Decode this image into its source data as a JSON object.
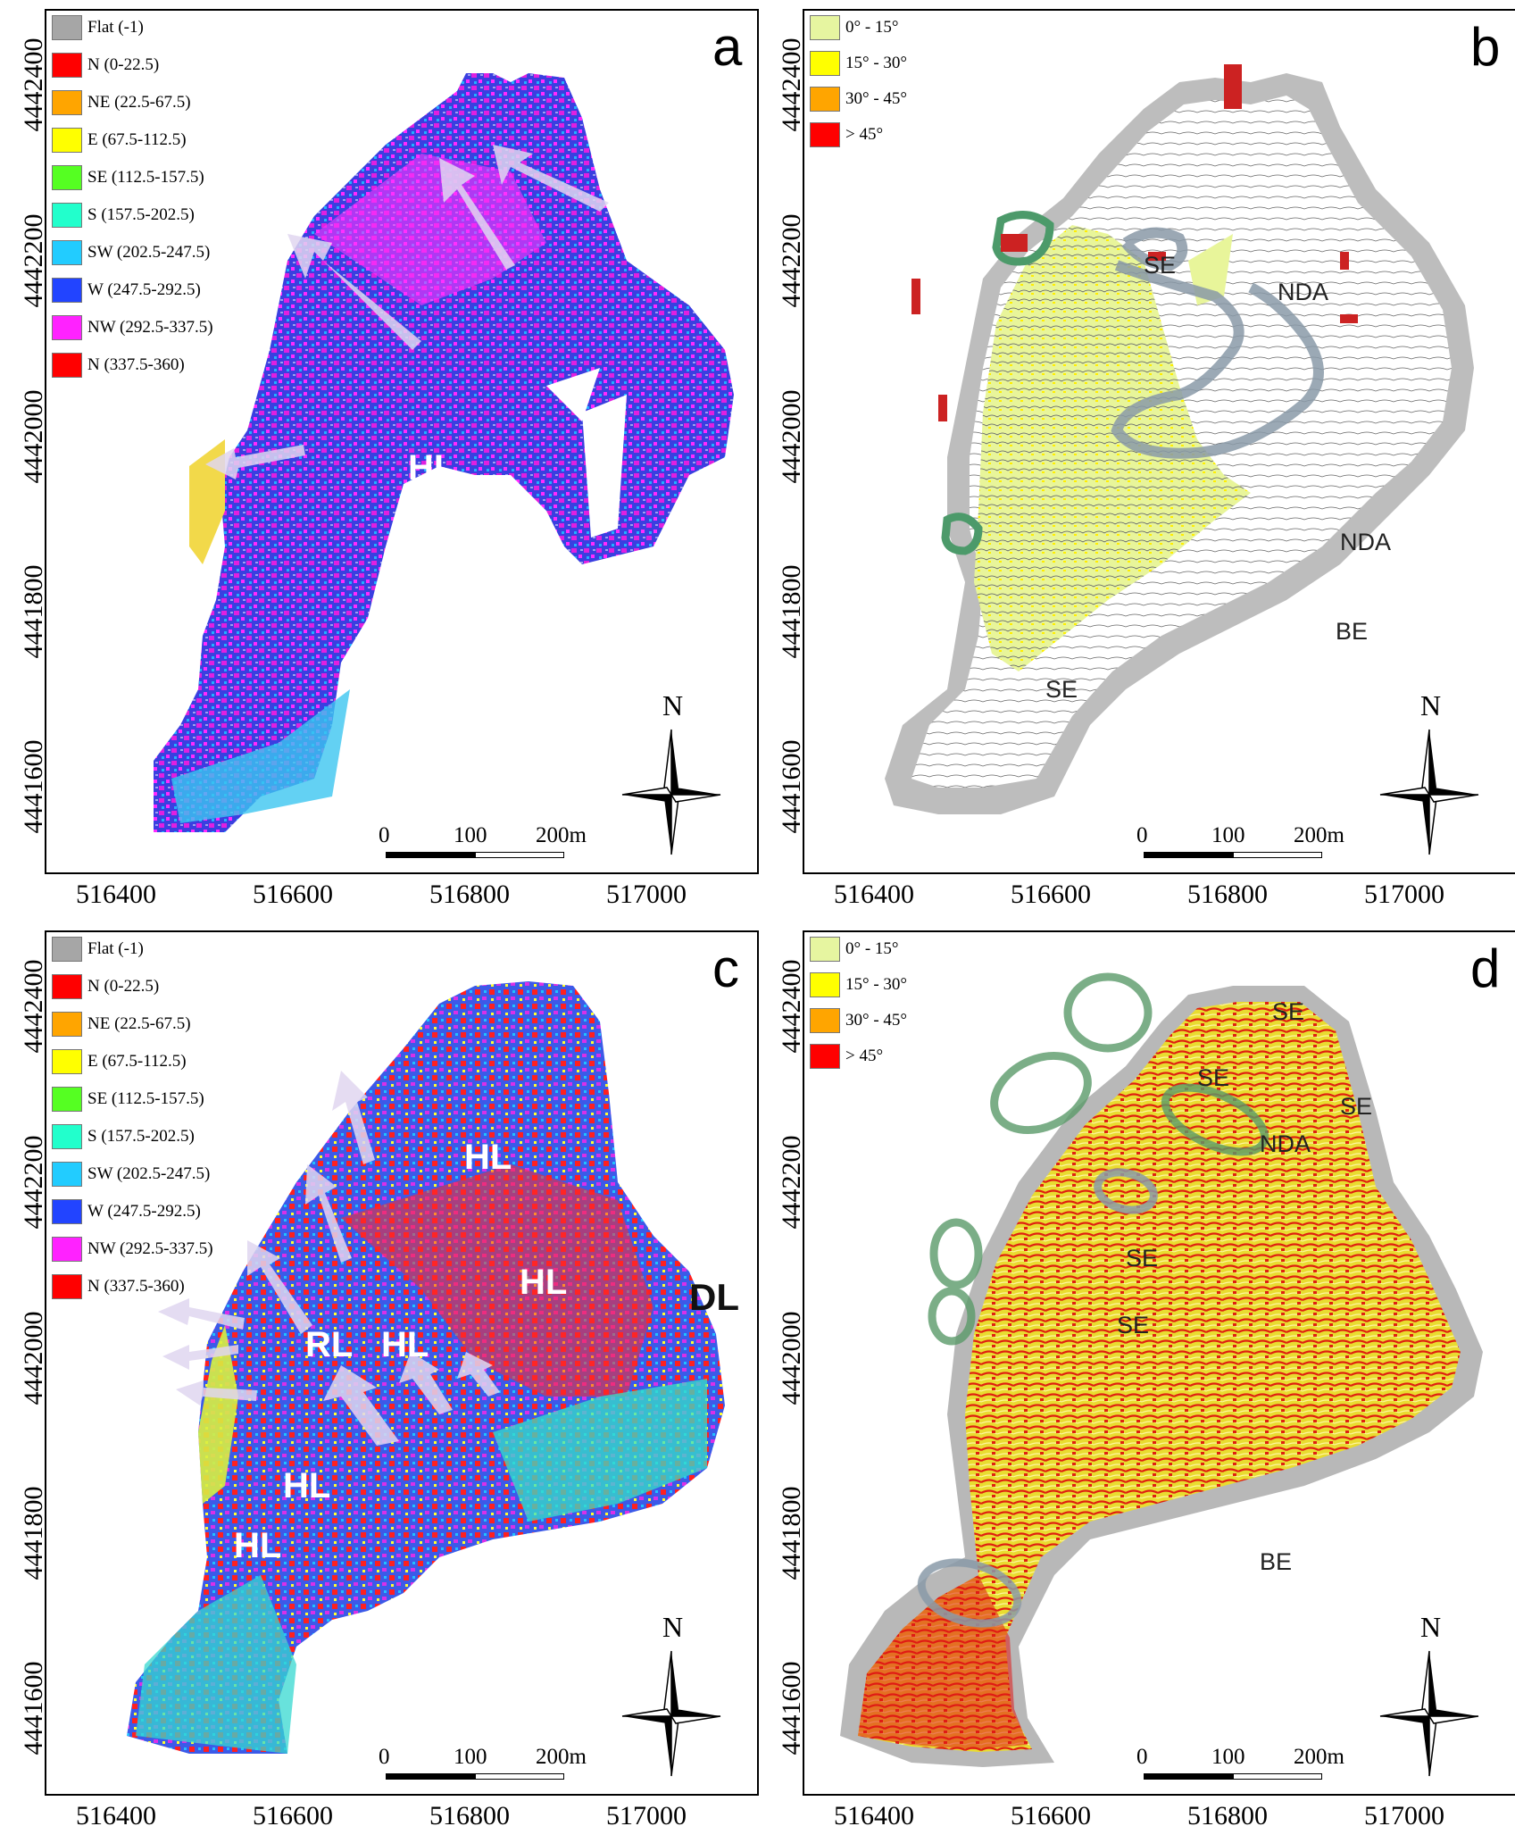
{
  "panels": [
    {
      "letter": "a",
      "legend": [
        {
          "label": "Flat (-1)",
          "color": "#a6a6a6"
        },
        {
          "label": "N (0-22.5)",
          "color": "#ff0000"
        },
        {
          "label": "NE (22.5-67.5)",
          "color": "#ffa500"
        },
        {
          "label": "E (67.5-112.5)",
          "color": "#ffff00"
        },
        {
          "label": "SE (112.5-157.5)",
          "color": "#55ff22"
        },
        {
          "label": "S (157.5-202.5)",
          "color": "#22ffcc"
        },
        {
          "label": "SW (202.5-247.5)",
          "color": "#22ccff"
        },
        {
          "label": "W (247.5-292.5)",
          "color": "#2244ff"
        },
        {
          "label": "NW (292.5-337.5)",
          "color": "#ff22ff"
        },
        {
          "label": "N (337.5-360)",
          "color": "#ff0000"
        }
      ],
      "yticks": [
        "4442400",
        "4442200",
        "4442000",
        "4441800",
        "4441600"
      ],
      "xticks": [
        "516400",
        "516600",
        "516800",
        "517000"
      ],
      "labels": [
        {
          "text": "HL",
          "style": "white"
        }
      ],
      "north": "N",
      "scale": [
        "0",
        "100",
        "200m"
      ]
    },
    {
      "letter": "b",
      "legend": [
        {
          "label": "0° - 15°",
          "color": "#e6f5a0"
        },
        {
          "label": "15° - 30°",
          "color": "#ffff00"
        },
        {
          "label": "30° - 45°",
          "color": "#ffa500"
        },
        {
          "label": "> 45°",
          "color": "#ff0000"
        }
      ],
      "yticks": [
        "4442400",
        "4442200",
        "4442000",
        "4441800",
        "4441600"
      ],
      "xticks": [
        "516400",
        "516600",
        "516800",
        "517000"
      ],
      "labels": [
        {
          "text": "SE",
          "style": "dark"
        },
        {
          "text": "NDA",
          "style": "dark"
        },
        {
          "text": "NDA",
          "style": "dark"
        },
        {
          "text": "BE",
          "style": "dark"
        },
        {
          "text": "SE",
          "style": "dark"
        }
      ],
      "north": "N",
      "scale": [
        "0",
        "100",
        "200m"
      ]
    },
    {
      "letter": "c",
      "legend": [
        {
          "label": "Flat (-1)",
          "color": "#a6a6a6"
        },
        {
          "label": "N (0-22.5)",
          "color": "#ff0000"
        },
        {
          "label": "NE (22.5-67.5)",
          "color": "#ffa500"
        },
        {
          "label": "E (67.5-112.5)",
          "color": "#ffff00"
        },
        {
          "label": "SE (112.5-157.5)",
          "color": "#55ff22"
        },
        {
          "label": "S (157.5-202.5)",
          "color": "#22ffcc"
        },
        {
          "label": "SW (202.5-247.5)",
          "color": "#22ccff"
        },
        {
          "label": "W (247.5-292.5)",
          "color": "#2244ff"
        },
        {
          "label": "NW (292.5-337.5)",
          "color": "#ff22ff"
        },
        {
          "label": "N (337.5-360)",
          "color": "#ff0000"
        }
      ],
      "yticks": [
        "4442400",
        "4442200",
        "4442000",
        "4441800",
        "4441600"
      ],
      "xticks": [
        "516400",
        "516600",
        "516800",
        "517000"
      ],
      "labels": [
        {
          "text": "HL",
          "style": "white"
        },
        {
          "text": "HL",
          "style": "white"
        },
        {
          "text": "DL",
          "style": "black"
        },
        {
          "text": "RL",
          "style": "white"
        },
        {
          "text": "HL",
          "style": "white"
        },
        {
          "text": "HL",
          "style": "white"
        },
        {
          "text": "HL",
          "style": "white"
        }
      ],
      "north": "N",
      "scale": [
        "0",
        "100",
        "200m"
      ]
    },
    {
      "letter": "d",
      "legend": [
        {
          "label": "0° - 15°",
          "color": "#e6f5a0"
        },
        {
          "label": "15° - 30°",
          "color": "#ffff00"
        },
        {
          "label": "30° - 45°",
          "color": "#ffa500"
        },
        {
          "label": "> 45°",
          "color": "#ff0000"
        }
      ],
      "yticks": [
        "4442400",
        "4442200",
        "4442000",
        "4441800",
        "4441600"
      ],
      "xticks": [
        "516400",
        "516600",
        "516800",
        "517000"
      ],
      "labels": [
        {
          "text": "SE",
          "style": "dark"
        },
        {
          "text": "SE",
          "style": "dark"
        },
        {
          "text": "SE",
          "style": "dark"
        },
        {
          "text": "NDA",
          "style": "dark"
        },
        {
          "text": "SE",
          "style": "dark"
        },
        {
          "text": "SE",
          "style": "dark"
        },
        {
          "text": "BE",
          "style": "dark"
        }
      ],
      "north": "N",
      "scale": [
        "0",
        "100",
        "200m"
      ]
    }
  ]
}
